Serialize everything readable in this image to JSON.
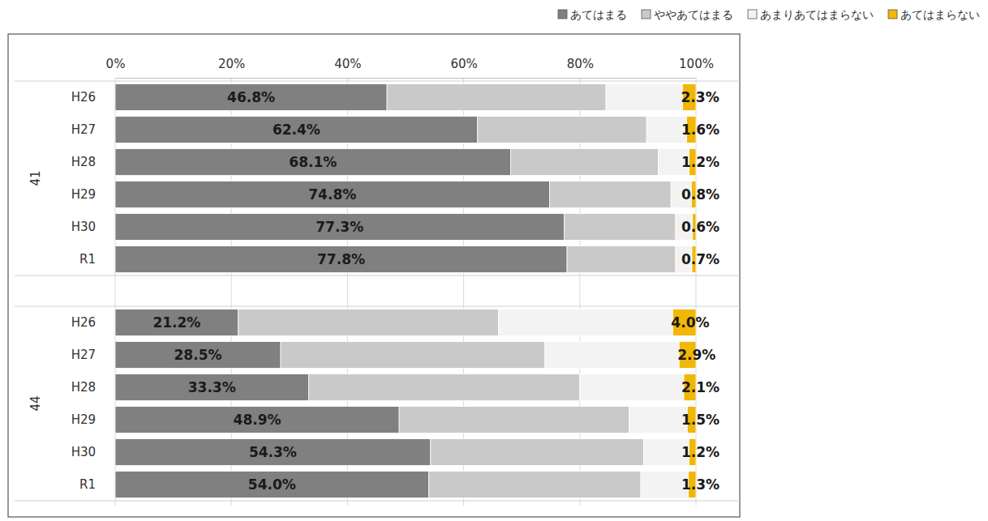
{
  "chart_data": {
    "type": "bar",
    "orientation": "horizontal",
    "stacked": true,
    "grid": true,
    "legend": "top-right",
    "xlim": [
      0,
      100
    ],
    "xticks": [
      {
        "value": 0,
        "label": "0%"
      },
      {
        "value": 20,
        "label": "20%"
      },
      {
        "value": 40,
        "label": "40%"
      },
      {
        "value": 60,
        "label": "60%"
      },
      {
        "value": 80,
        "label": "80%"
      },
      {
        "value": 100,
        "label": "100%"
      }
    ],
    "groups": [
      {
        "name": "41",
        "categories": [
          "H26",
          "H27",
          "H28",
          "H29",
          "H30",
          "R1"
        ]
      },
      {
        "name": "44",
        "categories": [
          "H26",
          "H27",
          "H28",
          "H29",
          "H30",
          "R1"
        ]
      }
    ],
    "series": [
      {
        "name": "あてはまる",
        "color": "#808080",
        "data_labels": true,
        "values": [
          [
            46.8,
            62.4,
            68.1,
            74.8,
            77.3,
            77.8
          ],
          [
            21.2,
            28.5,
            33.3,
            48.9,
            54.3,
            54.0
          ]
        ],
        "value_labels": [
          [
            "46.8%",
            "62.4%",
            "68.1%",
            "74.8%",
            "77.3%",
            "77.8%"
          ],
          [
            "21.2%",
            "28.5%",
            "33.3%",
            "48.9%",
            "54.3%",
            "54.0%"
          ]
        ]
      },
      {
        "name": "ややあてはまる",
        "color": "#c9c9c9",
        "data_labels": false,
        "values": [
          [
            37.7,
            29.1,
            25.4,
            20.9,
            19.2,
            18.7
          ],
          [
            44.8,
            45.5,
            46.7,
            39.6,
            36.7,
            36.5
          ]
        ]
      },
      {
        "name": "あまりあてはまらない",
        "color": "#f3f3f3",
        "data_labels": false,
        "values": [
          [
            13.2,
            6.9,
            5.3,
            3.5,
            2.9,
            2.8
          ],
          [
            30.0,
            23.1,
            17.9,
            10.0,
            7.8,
            8.2
          ]
        ]
      },
      {
        "name": "あてはまらない",
        "color": "#f2b705",
        "data_labels": true,
        "values": [
          [
            2.3,
            1.6,
            1.2,
            0.8,
            0.6,
            0.7
          ],
          [
            4.0,
            2.9,
            2.1,
            1.5,
            1.2,
            1.3
          ]
        ],
        "value_labels": [
          [
            "2.3%",
            "1.6%",
            "1.2%",
            "0.8%",
            "0.6%",
            "0.7%"
          ],
          [
            "4.0%",
            "2.9%",
            "2.1%",
            "1.5%",
            "1.2%",
            "1.3%"
          ]
        ]
      }
    ]
  }
}
